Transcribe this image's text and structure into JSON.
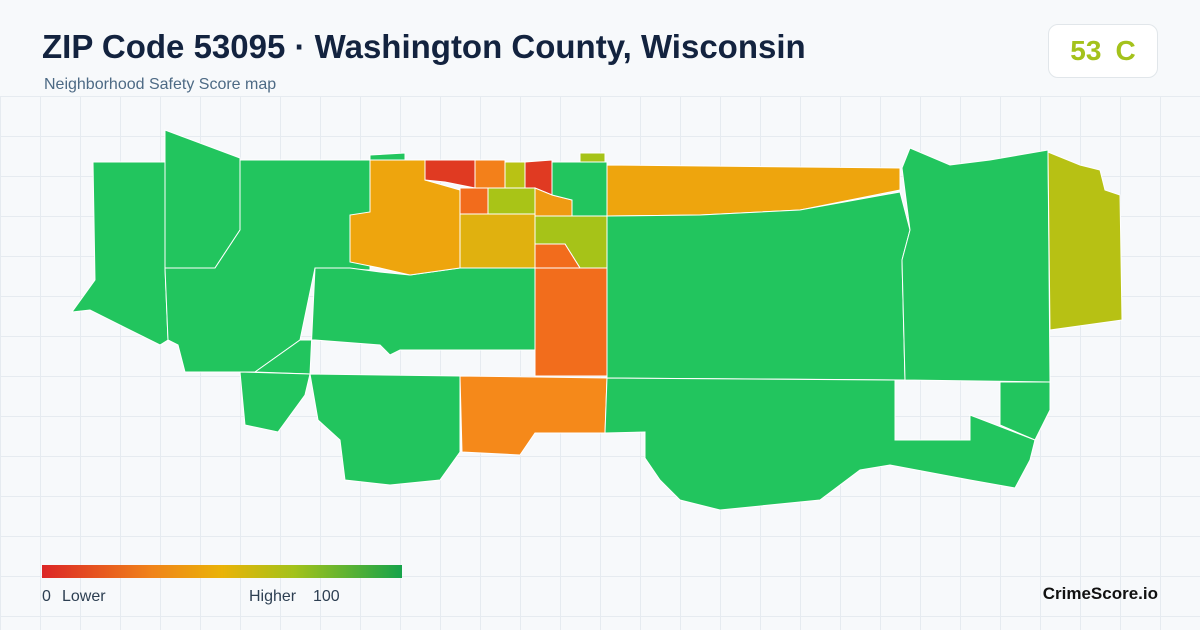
{
  "header": {
    "title": "ZIP Code 53095 · Washington County, Wisconsin",
    "subtitle": "Neighborhood Safety Score map"
  },
  "score": {
    "value": 53,
    "grade": "C"
  },
  "legend": {
    "min": 0,
    "min_label": "Lower",
    "max_label": "Higher",
    "max": 100
  },
  "brand": "CrimeScore.io"
}
